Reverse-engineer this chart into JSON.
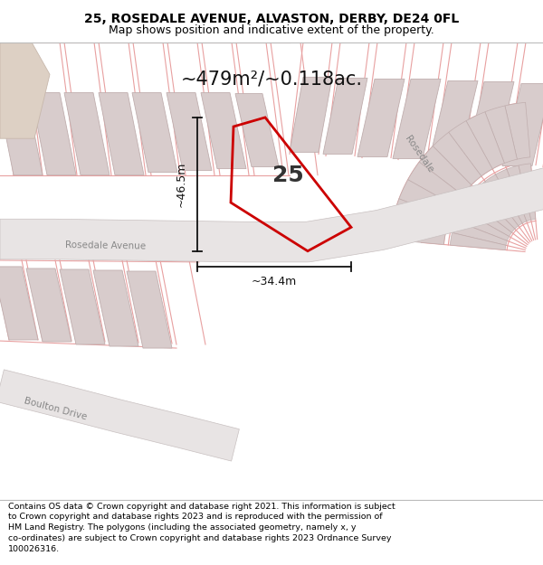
{
  "title_line1": "25, ROSEDALE AVENUE, ALVASTON, DERBY, DE24 0FL",
  "title_line2": "Map shows position and indicative extent of the property.",
  "footer_lines": [
    "Contains OS data © Crown copyright and database right 2021. This information is subject",
    "to Crown copyright and database rights 2023 and is reproduced with the permission of",
    "HM Land Registry. The polygons (including the associated geometry, namely x, y",
    "co-ordinates) are subject to Crown copyright and database rights 2023 Ordnance Survey",
    "100026316."
  ],
  "area_text": "~479m²/~0.118ac.",
  "number_text": "25",
  "dim_width": "~34.4m",
  "dim_height": "~46.5m",
  "road_label_rosedale_ave": "Rosedale Avenue",
  "road_label_rosedale": "Rosedale",
  "road_label_boulton": "Boulton Drive",
  "plot_color": "#cc0000",
  "building_fill": "#d8cccc",
  "building_edge": "#c0aeae",
  "road_line_color": "#e8a0a0",
  "road_fill": "#e8e0e0",
  "road_edge": "#c8b8b8",
  "map_bg": "#ffffff",
  "dim_color": "#111111",
  "text_color": "#222222",
  "corner_fill": "#ddd0c8",
  "title_fontsize": 10,
  "subtitle_fontsize": 9,
  "footer_fontsize": 6.8,
  "area_fontsize": 15,
  "label_fontsize": 18,
  "dim_fontsize": 9,
  "road_label_fontsize": 7.5
}
